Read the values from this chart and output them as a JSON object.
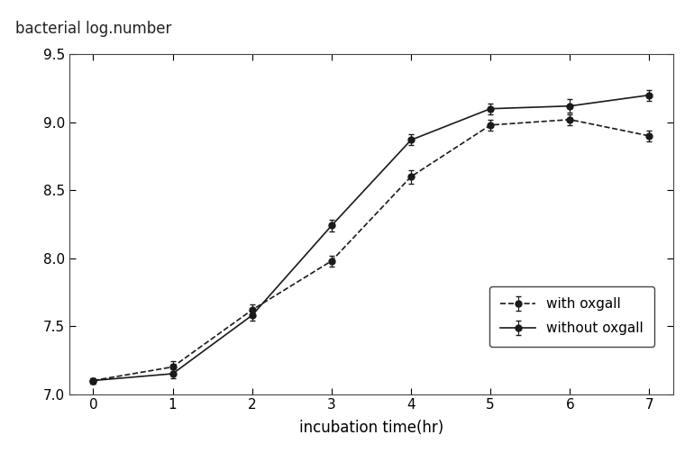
{
  "x": [
    0,
    1,
    2,
    3,
    4,
    5,
    6,
    7
  ],
  "with_oxgall": [
    7.1,
    7.2,
    7.62,
    7.98,
    8.6,
    8.98,
    9.02,
    8.9
  ],
  "without_oxgall": [
    7.1,
    7.15,
    7.58,
    8.24,
    8.87,
    9.1,
    9.12,
    9.2
  ],
  "with_oxgall_err": [
    0.02,
    0.04,
    0.04,
    0.04,
    0.05,
    0.04,
    0.04,
    0.04
  ],
  "without_oxgall_err": [
    0.02,
    0.03,
    0.04,
    0.04,
    0.04,
    0.04,
    0.05,
    0.04
  ],
  "xlabel": "incubation time(hr)",
  "ylabel": "bacterial log.number",
  "xlim": [
    -0.3,
    7.3
  ],
  "ylim": [
    7.0,
    9.5
  ],
  "yticks": [
    7.0,
    7.5,
    8.0,
    8.5,
    9.0,
    9.5
  ],
  "xticks": [
    0,
    1,
    2,
    3,
    4,
    5,
    6,
    7
  ],
  "legend_with": "with oxgall",
  "legend_without": "without oxgall",
  "line_color": "#1a1a1a",
  "background_color": "#ffffff"
}
